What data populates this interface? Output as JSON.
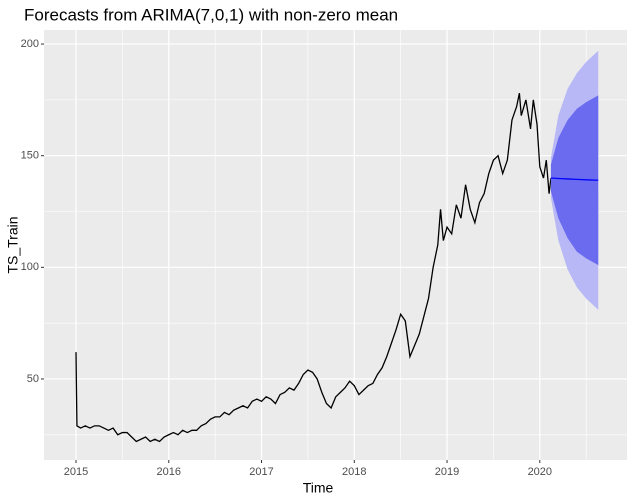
{
  "chart_data": {
    "type": "line",
    "title": "Forecasts from ARIMA(7,0,1) with non-zero mean",
    "xlabel": "Time",
    "ylabel": "TS_Train",
    "x": [
      2015.0,
      2015.01,
      2015.05,
      2015.1,
      2015.15,
      2015.2,
      2015.25,
      2015.3,
      2015.35,
      2015.4,
      2015.45,
      2015.5,
      2015.55,
      2015.6,
      2015.65,
      2015.7,
      2015.75,
      2015.8,
      2015.85,
      2015.9,
      2015.95,
      2016.0,
      2016.05,
      2016.1,
      2016.15,
      2016.2,
      2016.25,
      2016.3,
      2016.35,
      2016.4,
      2016.45,
      2016.5,
      2016.55,
      2016.6,
      2016.65,
      2016.7,
      2016.75,
      2016.8,
      2016.85,
      2016.9,
      2016.95,
      2017.0,
      2017.05,
      2017.1,
      2017.15,
      2017.2,
      2017.25,
      2017.3,
      2017.35,
      2017.4,
      2017.45,
      2017.5,
      2017.55,
      2017.6,
      2017.65,
      2017.7,
      2017.75,
      2017.8,
      2017.85,
      2017.9,
      2017.95,
      2018.0,
      2018.05,
      2018.1,
      2018.15,
      2018.2,
      2018.25,
      2018.3,
      2018.35,
      2018.4,
      2018.45,
      2018.5,
      2018.55,
      2018.6,
      2018.65,
      2018.7,
      2018.75,
      2018.8,
      2018.85,
      2018.9,
      2018.93,
      2018.96,
      2019.0,
      2019.05,
      2019.1,
      2019.15,
      2019.2,
      2019.25,
      2019.3,
      2019.35,
      2019.4,
      2019.45,
      2019.5,
      2019.55,
      2019.6,
      2019.65,
      2019.7,
      2019.75,
      2019.78,
      2019.8,
      2019.85,
      2019.9,
      2019.93,
      2019.97,
      2020.0,
      2020.04,
      2020.07,
      2020.1,
      2020.12
    ],
    "values": [
      62,
      29,
      28,
      29,
      28,
      29,
      29,
      28,
      27,
      28,
      25,
      26,
      26,
      24,
      22,
      23,
      24,
      22,
      23,
      22,
      24,
      25,
      26,
      25,
      27,
      26,
      27,
      27,
      29,
      30,
      32,
      33,
      33,
      35,
      34,
      36,
      37,
      38,
      37,
      40,
      41,
      40,
      42,
      41,
      39,
      43,
      44,
      46,
      45,
      48,
      52,
      54,
      53,
      50,
      44,
      39,
      37,
      42,
      44,
      46,
      49,
      47,
      43,
      45,
      47,
      48,
      52,
      55,
      60,
      66,
      72,
      79,
      76,
      60,
      65,
      70,
      78,
      86,
      100,
      110,
      126,
      112,
      118,
      115,
      128,
      122,
      137,
      126,
      120,
      129,
      133,
      142,
      148,
      150,
      142,
      148,
      166,
      172,
      178,
      168,
      175,
      162,
      175,
      164,
      145,
      140,
      148,
      133,
      140
    ],
    "color": "#000000",
    "forecast": {
      "x": [
        2020.12,
        2020.2,
        2020.3,
        2020.4,
        2020.5,
        2020.63
      ],
      "mean": [
        140,
        139.8,
        139.6,
        139.4,
        139.2,
        139
      ],
      "lo80": [
        134,
        122,
        113,
        107,
        104,
        101
      ],
      "hi80": [
        146,
        158,
        166,
        171,
        174,
        177
      ],
      "lo95": [
        131,
        112,
        99,
        91,
        86,
        81
      ],
      "hi95": [
        149,
        168,
        180,
        187,
        192,
        197
      ],
      "mean_color": "#0000ff",
      "color80": "#6b6bf0",
      "color95": "#b8b8f6"
    },
    "xlim": [
      2014.655,
      2020.94
    ],
    "ylim": [
      13.7,
      206.3
    ],
    "xticks": [
      2015,
      2016,
      2017,
      2018,
      2019,
      2020
    ],
    "yticks": [
      50,
      100,
      150,
      200
    ],
    "grid": true
  }
}
